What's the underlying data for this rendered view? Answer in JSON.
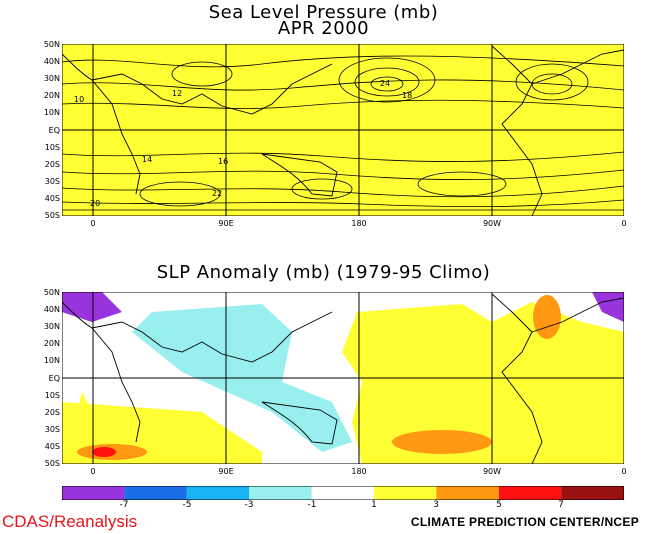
{
  "top_map": {
    "title_line1": "Sea Level Pressure (mb)",
    "title_line2": "APR 2000",
    "fill_color": "#ffff33"
  },
  "bottom_map": {
    "title": "SLP Anomaly (mb) (1979-95 Climo)"
  },
  "lat_labels": [
    "50N",
    "40N",
    "30N",
    "20N",
    "10N",
    "EQ",
    "10S",
    "20S",
    "30S",
    "40S",
    "50S"
  ],
  "lon_labels": [
    "0",
    "90E",
    "180",
    "90W",
    "0"
  ],
  "contour_labels_top": [
    "10",
    "12",
    "14",
    "16",
    "18",
    "20",
    "22",
    "24"
  ],
  "colorbar": {
    "labels": [
      "-7",
      "-5",
      "-3",
      "-1",
      "1",
      "3",
      "5",
      "7"
    ],
    "colors": [
      "#9933dd",
      "#1a6fe6",
      "#19b2f2",
      "#99eeee",
      "#ffffff",
      "#ffff33",
      "#ff9911",
      "#ff1111",
      "#991111"
    ]
  },
  "footer": {
    "left": "CDAS/Reanalysis",
    "right": "CLIMATE PREDICTION CENTER/NCEP"
  }
}
